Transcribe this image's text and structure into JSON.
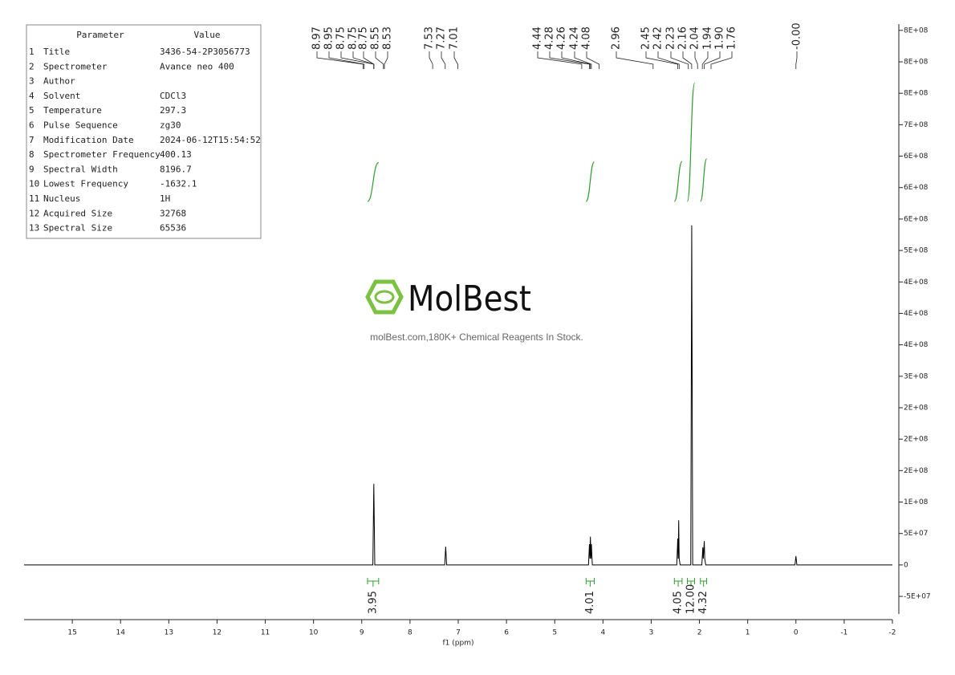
{
  "parameter_table": {
    "header": [
      "Parameter",
      "Value"
    ],
    "rows": [
      [
        "1",
        "Title",
        "3436-54-2P3056773"
      ],
      [
        "2",
        "Spectrometer",
        "Avance neo 400"
      ],
      [
        "3",
        "Author"
      ],
      [
        "4",
        "Solvent",
        "CDCl3"
      ],
      [
        "5",
        "Temperature",
        "297.3"
      ],
      [
        "6",
        "Pulse Sequence",
        "zg30"
      ],
      [
        "7",
        "Modification Date",
        "2024-06-12T15:54:52"
      ],
      [
        "8",
        "Spectrometer Frequency",
        "400.13"
      ],
      [
        "9",
        "Spectral Width",
        "8196.7"
      ],
      [
        "10",
        "Lowest Frequency",
        "-1632.1"
      ],
      [
        "11",
        "Nucleus",
        "1H"
      ],
      [
        "12",
        "Acquired Size",
        "32768"
      ],
      [
        "13",
        "Spectral Size",
        "65536"
      ]
    ]
  },
  "watermark": {
    "brand": "MolBest",
    "tagline": "molBest.com,180K+ Chemical Reagents In Stock."
  },
  "chart_data": {
    "type": "nmr",
    "xlabel": "f1 (ppm)",
    "color": "#000000",
    "integral_color": "#2e9e2e",
    "xlim": [
      16,
      -2
    ],
    "xticks": [
      15,
      14,
      13,
      12,
      11,
      10,
      9,
      8,
      7,
      6,
      5,
      4,
      3,
      2,
      1,
      0,
      -1,
      -2
    ],
    "ylim": [
      -78000000,
      860000000
    ],
    "yticks": [
      {
        "value": -50000000,
        "label": "-5E+07"
      },
      0,
      {
        "value": 50000000,
        "label": "5E+07"
      },
      {
        "value": 100000000,
        "label": "1E+08"
      },
      {
        "value": 150000000,
        "label": "2E+08"
      },
      {
        "value": 200000000,
        "label": "2E+08"
      },
      {
        "value": 250000000,
        "label": "2E+08"
      },
      {
        "value": 300000000,
        "label": "3E+08"
      },
      {
        "value": 350000000,
        "label": "4E+08"
      },
      {
        "value": 400000000,
        "label": "4E+08"
      },
      {
        "value": 450000000,
        "label": "4E+08"
      },
      {
        "value": 500000000,
        "label": "5E+08"
      },
      {
        "value": 550000000,
        "label": "6E+08"
      },
      {
        "value": 600000000,
        "label": "6E+08"
      },
      {
        "value": 650000000,
        "label": "6E+08"
      },
      {
        "value": 700000000,
        "label": "7E+08"
      },
      {
        "value": 750000000,
        "label": "8E+08"
      },
      {
        "value": 800000000,
        "label": "8E+08"
      },
      {
        "value": 850000000,
        "label": "8E+08"
      }
    ],
    "x": [
      16,
      8.77,
      8.75,
      8.73,
      7.28,
      7.26,
      7.24,
      4.3,
      4.28,
      4.27,
      4.26,
      4.25,
      4.24,
      4.22,
      2.47,
      2.45,
      2.44,
      2.43,
      2.42,
      2.4,
      2.18,
      2.16,
      2.14,
      1.95,
      1.93,
      1.92,
      1.9,
      1.89,
      1.87,
      0.02,
      0.0,
      -0.02,
      -2
    ],
    "values": [
      0,
      0,
      129000000,
      0,
      0,
      29000000,
      0,
      0,
      33000000,
      10000000,
      45000000,
      10000000,
      33000000,
      0,
      0,
      42000000,
      10000000,
      71000000,
      10000000,
      0,
      0,
      540000000,
      0,
      0,
      28000000,
      10000000,
      38000000,
      10000000,
      0,
      0,
      14000000,
      0,
      0
    ],
    "peak_labels": {
      "values": [
        8.97,
        8.95,
        8.75,
        8.75,
        8.75,
        8.55,
        8.53,
        7.53,
        7.27,
        7.01,
        4.44,
        4.28,
        4.26,
        4.24,
        4.08,
        2.96,
        2.45,
        2.42,
        2.23,
        2.16,
        2.04,
        1.94,
        1.9,
        1.76,
        -0.0
      ],
      "value_labels": [
        "8.97",
        "8.95",
        "8.75",
        "8.75",
        "8.75",
        "8.55",
        "8.53",
        "7.53",
        "7.27",
        "7.01",
        "4.44",
        "4.28",
        "4.26",
        "4.24",
        "4.08",
        "2.96",
        "2.45",
        "2.42",
        "2.23",
        "2.16",
        "2.04",
        "1.94",
        "1.90",
        "1.76",
        "-0.00"
      ]
    },
    "integrals": {
      "ranges": [
        [
          8.88,
          8.65
        ],
        [
          4.35,
          4.18
        ],
        [
          2.52,
          2.36
        ],
        [
          2.25,
          2.1
        ],
        [
          1.98,
          1.85
        ]
      ],
      "values": [
        3.95,
        4.01,
        4.05,
        12,
        4.32
      ],
      "value_labels": [
        "3.95",
        "4.01",
        "4.05",
        "12.00",
        "4.32"
      ]
    }
  }
}
